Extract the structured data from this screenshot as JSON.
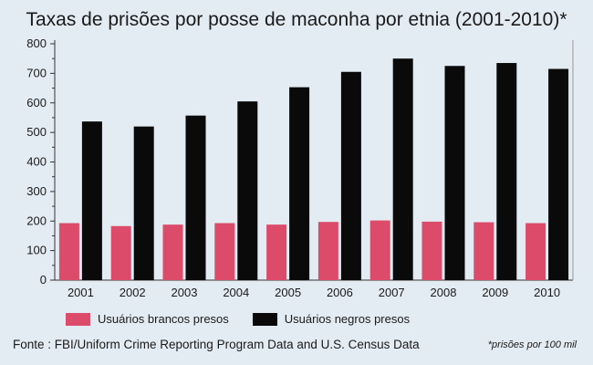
{
  "chart_data": {
    "type": "bar",
    "title": "Taxas de prisões por posse de maconha por etnia (2001-2010)*",
    "categories": [
      "2001",
      "2002",
      "2003",
      "2004",
      "2005",
      "2006",
      "2007",
      "2008",
      "2009",
      "2010"
    ],
    "series": [
      {
        "name": "Usuários brancos presos",
        "color": "#dc4b6a",
        "values": [
          193,
          183,
          188,
          193,
          188,
          197,
          202,
          198,
          196,
          193
        ]
      },
      {
        "name": "Usuários negros presos",
        "color": "#0a0a0a",
        "values": [
          537,
          520,
          557,
          605,
          653,
          705,
          750,
          725,
          735,
          715
        ]
      }
    ],
    "ylim": [
      0,
      800
    ],
    "yticks": [
      0,
      100,
      200,
      300,
      400,
      500,
      600,
      700,
      800
    ],
    "grid": false,
    "legend_position": "bottom",
    "source": "Fonte : FBI/Uniform Crime Reporting Program Data and U.S. Census Data",
    "footnote": "*prisões por 100 mil"
  }
}
